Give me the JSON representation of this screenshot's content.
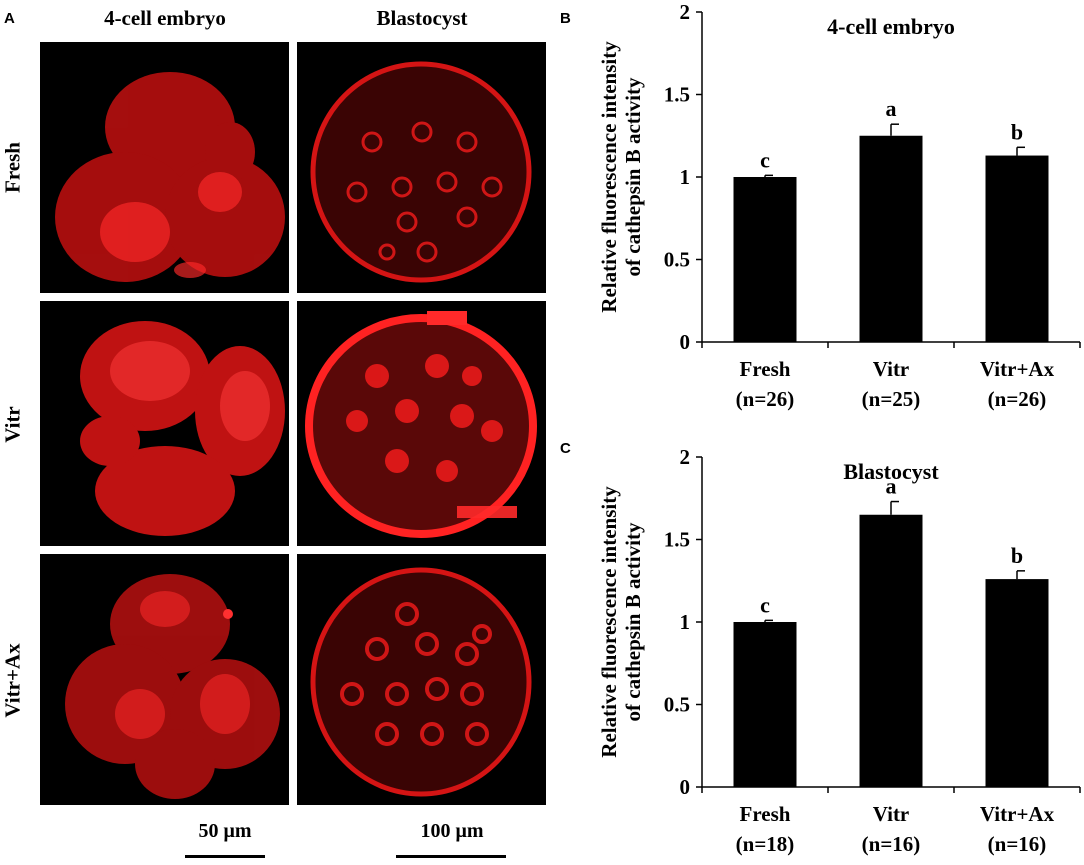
{
  "panel_a": {
    "letter": "A",
    "column_titles": [
      "4-cell embryo",
      "Blastocyst"
    ],
    "row_titles": [
      "Fresh",
      "Vitr",
      "Vitr+Ax"
    ],
    "scale_bars": [
      "50 μm",
      "100 μm"
    ],
    "colors": {
      "background": "#000000",
      "signal": "#ff1a1a"
    }
  },
  "panel_b": {
    "letter": "B"
  },
  "panel_c": {
    "letter": "C"
  },
  "chart_data": [
    {
      "type": "bar",
      "title": "4-cell embryo",
      "ylabel": [
        "Relative fluorescence intensity",
        "of cathepsin B activity"
      ],
      "categories": [
        [
          "Fresh",
          "(n=26)"
        ],
        [
          "Vitr",
          "(n=25)"
        ],
        [
          "Vitr+Ax",
          "(n=26)"
        ]
      ],
      "values": [
        1.0,
        1.25,
        1.13
      ],
      "errors": [
        0.01,
        0.07,
        0.05
      ],
      "significance_letters": [
        "c",
        "a",
        "b"
      ],
      "ylim": [
        0,
        2
      ],
      "yticks": [
        "0",
        "0.5",
        "1",
        "1.5",
        "2"
      ],
      "ytick_values": [
        0,
        0.5,
        1,
        1.5,
        2
      ],
      "bar_color": "#000000",
      "grid": false
    },
    {
      "type": "bar",
      "title": "Blastocyst",
      "ylabel": [
        "Relative fluorescence intensity",
        "of cathepsin B activity"
      ],
      "categories": [
        [
          "Fresh",
          "(n=18)"
        ],
        [
          "Vitr",
          "(n=16)"
        ],
        [
          "Vitr+Ax",
          "(n=16)"
        ]
      ],
      "values": [
        1.0,
        1.65,
        1.26
      ],
      "errors": [
        0.01,
        0.08,
        0.05
      ],
      "significance_letters": [
        "c",
        "a",
        "b"
      ],
      "ylim": [
        0,
        2
      ],
      "yticks": [
        "0",
        "0.5",
        "1",
        "1.5",
        "2"
      ],
      "ytick_values": [
        0,
        0.5,
        1,
        1.5,
        2
      ],
      "bar_color": "#000000",
      "grid": false
    }
  ]
}
